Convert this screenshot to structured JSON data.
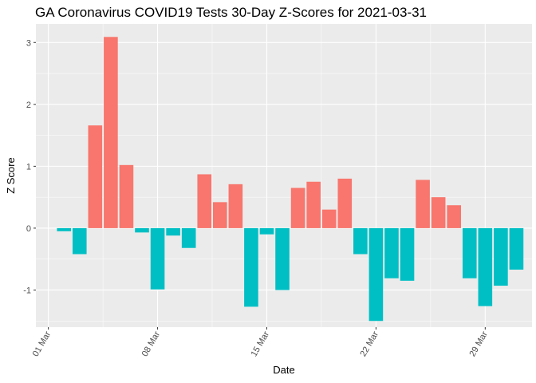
{
  "chart_data": {
    "type": "bar",
    "title": "GA Coronavirus COVID19 Tests 30-Day Z-Scores for 2021-03-31",
    "xlabel": "Date",
    "ylabel": "Z Score",
    "x_tick_labels": [
      "01 Mar",
      "08 Mar",
      "15 Mar",
      "22 Mar",
      "29 Mar"
    ],
    "y_tick_labels": [
      "-1",
      "0",
      "1",
      "2",
      "3"
    ],
    "ylim": [
      -1.6,
      3.3
    ],
    "grid": true,
    "legend": "none",
    "colors": {
      "positive": "#F8766D",
      "negative": "#00BFC4",
      "panel": "#EBEBEB",
      "grid": "#FFFFFF"
    },
    "x": [
      "2021-03-02",
      "2021-03-03",
      "2021-03-04",
      "2021-03-05",
      "2021-03-06",
      "2021-03-07",
      "2021-03-08",
      "2021-03-09",
      "2021-03-10",
      "2021-03-11",
      "2021-03-12",
      "2021-03-13",
      "2021-03-14",
      "2021-03-15",
      "2021-03-16",
      "2021-03-17",
      "2021-03-18",
      "2021-03-19",
      "2021-03-20",
      "2021-03-21",
      "2021-03-22",
      "2021-03-23",
      "2021-03-24",
      "2021-03-25",
      "2021-03-26",
      "2021-03-27",
      "2021-03-28",
      "2021-03-29",
      "2021-03-30",
      "2021-03-31"
    ],
    "values": [
      -0.05,
      -0.42,
      1.66,
      3.09,
      1.02,
      -0.07,
      -0.99,
      -0.12,
      -0.32,
      0.87,
      0.42,
      0.71,
      -1.27,
      -0.1,
      -1.0,
      0.65,
      0.75,
      0.3,
      0.8,
      -0.42,
      -1.5,
      -0.81,
      -0.85,
      0.78,
      0.5,
      0.37,
      -0.81,
      -1.26,
      -0.93,
      -0.67
    ]
  }
}
